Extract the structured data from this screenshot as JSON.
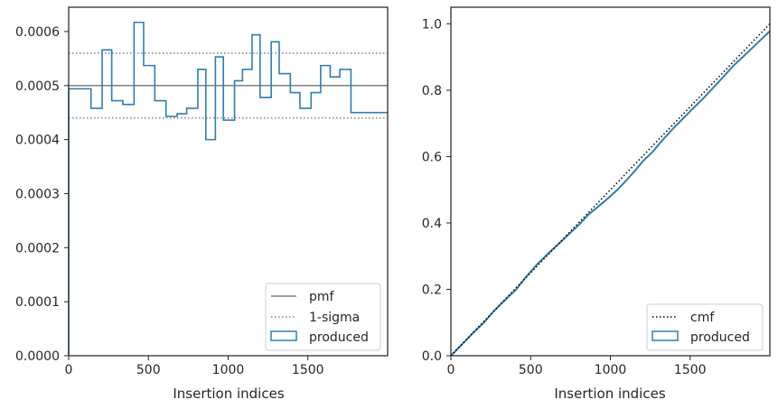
{
  "chart_data": [
    {
      "type": "step-histogram",
      "xlabel": "Insertion indices",
      "ylabel": "",
      "xlim": [
        0,
        2000
      ],
      "ylim": [
        0,
        0.000645
      ],
      "xticks": [
        0,
        500,
        1000,
        1500
      ],
      "xtick_labels": [
        "0",
        "500",
        "1000",
        "1500"
      ],
      "yticks": [
        0,
        0.0001,
        0.0002,
        0.0003,
        0.0004,
        0.0005,
        0.0006
      ],
      "ytick_labels": [
        "0.0000",
        "0.0001",
        "0.0002",
        "0.0003",
        "0.0004",
        "0.0005",
        "0.0006"
      ],
      "pmf": 0.0005,
      "sigma_band": [
        0.00044,
        0.00056
      ],
      "bin_edges": [
        0,
        140,
        210,
        270,
        340,
        410,
        470,
        540,
        610,
        680,
        740,
        810,
        860,
        920,
        970,
        1040,
        1090,
        1150,
        1200,
        1270,
        1320,
        1390,
        1450,
        1520,
        1580,
        1640,
        1700,
        1770,
        1830,
        1880,
        1950,
        2000
      ],
      "values": [
        0.000494,
        0.000458,
        0.000566,
        0.000472,
        0.000465,
        0.000617,
        0.000537,
        0.000472,
        0.000443,
        0.000448,
        0.000458,
        0.00053,
        0.0004,
        0.000553,
        0.000436,
        0.000509,
        0.00053,
        0.000594,
        0.000478,
        0.000581,
        0.000522,
        0.000487,
        0.000458,
        0.000487,
        0.000537,
        0.000516,
        0.00053,
        0.00045,
        0.00045,
        0.00045,
        0.00045
      ],
      "series": [
        {
          "name": "pmf",
          "color": "#808080",
          "style": "solid"
        },
        {
          "name": "1-sigma",
          "color": "#808080",
          "style": "dotted"
        },
        {
          "name": "produced",
          "color": "#2e7fb0",
          "style": "step"
        }
      ],
      "legend_position": "lower-right"
    },
    {
      "type": "line",
      "xlabel": "Insertion indices",
      "ylabel": "",
      "xlim": [
        0,
        2000
      ],
      "ylim": [
        0,
        1.05
      ],
      "xticks": [
        0,
        500,
        1000,
        1500
      ],
      "xtick_labels": [
        "0",
        "500",
        "1000",
        "1500"
      ],
      "yticks": [
        0,
        0.2,
        0.4,
        0.6,
        0.8,
        1.0
      ],
      "ytick_labels": [
        "0.0",
        "0.2",
        "0.4",
        "0.6",
        "0.8",
        "1.0"
      ],
      "cmf": {
        "x": [
          0,
          2000
        ],
        "y": [
          0,
          1.0
        ]
      },
      "produced": {
        "x": [
          0,
          140,
          210,
          270,
          340,
          410,
          470,
          540,
          610,
          680,
          740,
          810,
          860,
          920,
          970,
          1040,
          1090,
          1150,
          1200,
          1270,
          1320,
          1390,
          1450,
          1520,
          1580,
          1640,
          1700,
          1770,
          1830,
          1880,
          1950,
          2000
        ],
        "y": [
          0,
          0.069,
          0.101,
          0.135,
          0.168,
          0.2,
          0.237,
          0.275,
          0.308,
          0.339,
          0.366,
          0.398,
          0.424,
          0.448,
          0.468,
          0.498,
          0.523,
          0.555,
          0.584,
          0.617,
          0.646,
          0.683,
          0.712,
          0.746,
          0.774,
          0.805,
          0.836,
          0.873,
          0.9,
          0.923,
          0.955,
          0.978
        ]
      },
      "series": [
        {
          "name": "cmf",
          "color": "#000000",
          "style": "dotted"
        },
        {
          "name": "produced",
          "color": "#2e7fb0",
          "style": "solid"
        }
      ],
      "legend_position": "lower-right"
    }
  ]
}
